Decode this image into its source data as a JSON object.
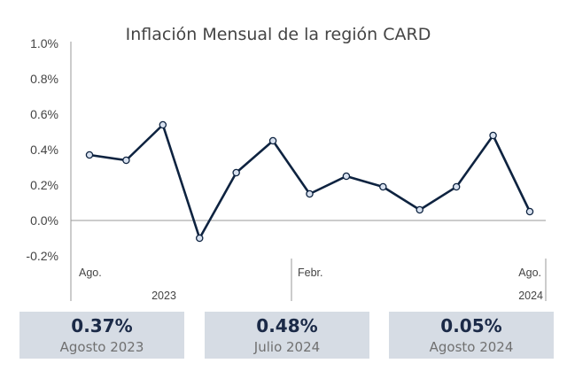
{
  "chart_data": {
    "type": "line",
    "title": "Inflación Mensual de la región CARD",
    "xlabel": "",
    "ylabel": "",
    "x": [
      "2023-08",
      "2023-09",
      "2023-10",
      "2023-11",
      "2023-12",
      "2024-01",
      "2024-02",
      "2024-03",
      "2024-04",
      "2024-05",
      "2024-06",
      "2024-07",
      "2024-08"
    ],
    "series": [
      {
        "values": [
          0.37,
          0.34,
          0.54,
          -0.1,
          0.27,
          0.45,
          0.15,
          0.25,
          0.19,
          0.06,
          0.19,
          0.48,
          0.05
        ]
      }
    ],
    "ylim": [
      -0.2,
      1.0
    ],
    "yticks": [
      {
        "value": 1.0,
        "label": "1.0%"
      },
      {
        "value": 0.8,
        "label": "0.8%"
      },
      {
        "value": 0.6,
        "label": "0.6%"
      },
      {
        "value": 0.4,
        "label": "0.4%"
      },
      {
        "value": 0.2,
        "label": "0.2%"
      },
      {
        "value": 0.0,
        "label": "0.0%"
      },
      {
        "value": -0.2,
        "label": "-0.2%"
      }
    ],
    "category_labels": [
      {
        "index": 0,
        "label": "Ago."
      },
      {
        "index": 6,
        "label": "Febr."
      },
      {
        "index": 12,
        "label": "Ago."
      }
    ],
    "year_labels": [
      {
        "index": 2,
        "label": "2023"
      },
      {
        "index": 12,
        "label": "2024"
      }
    ],
    "grid": false,
    "colors": {
      "line": "#0e2340",
      "marker_fill": "#d9e2f0",
      "axis": "#999999"
    }
  },
  "cards": [
    {
      "value": "0.37%",
      "label": "Agosto 2023"
    },
    {
      "value": "0.48%",
      "label": "Julio 2024"
    },
    {
      "value": "0.05%",
      "label": "Agosto 2024"
    }
  ]
}
